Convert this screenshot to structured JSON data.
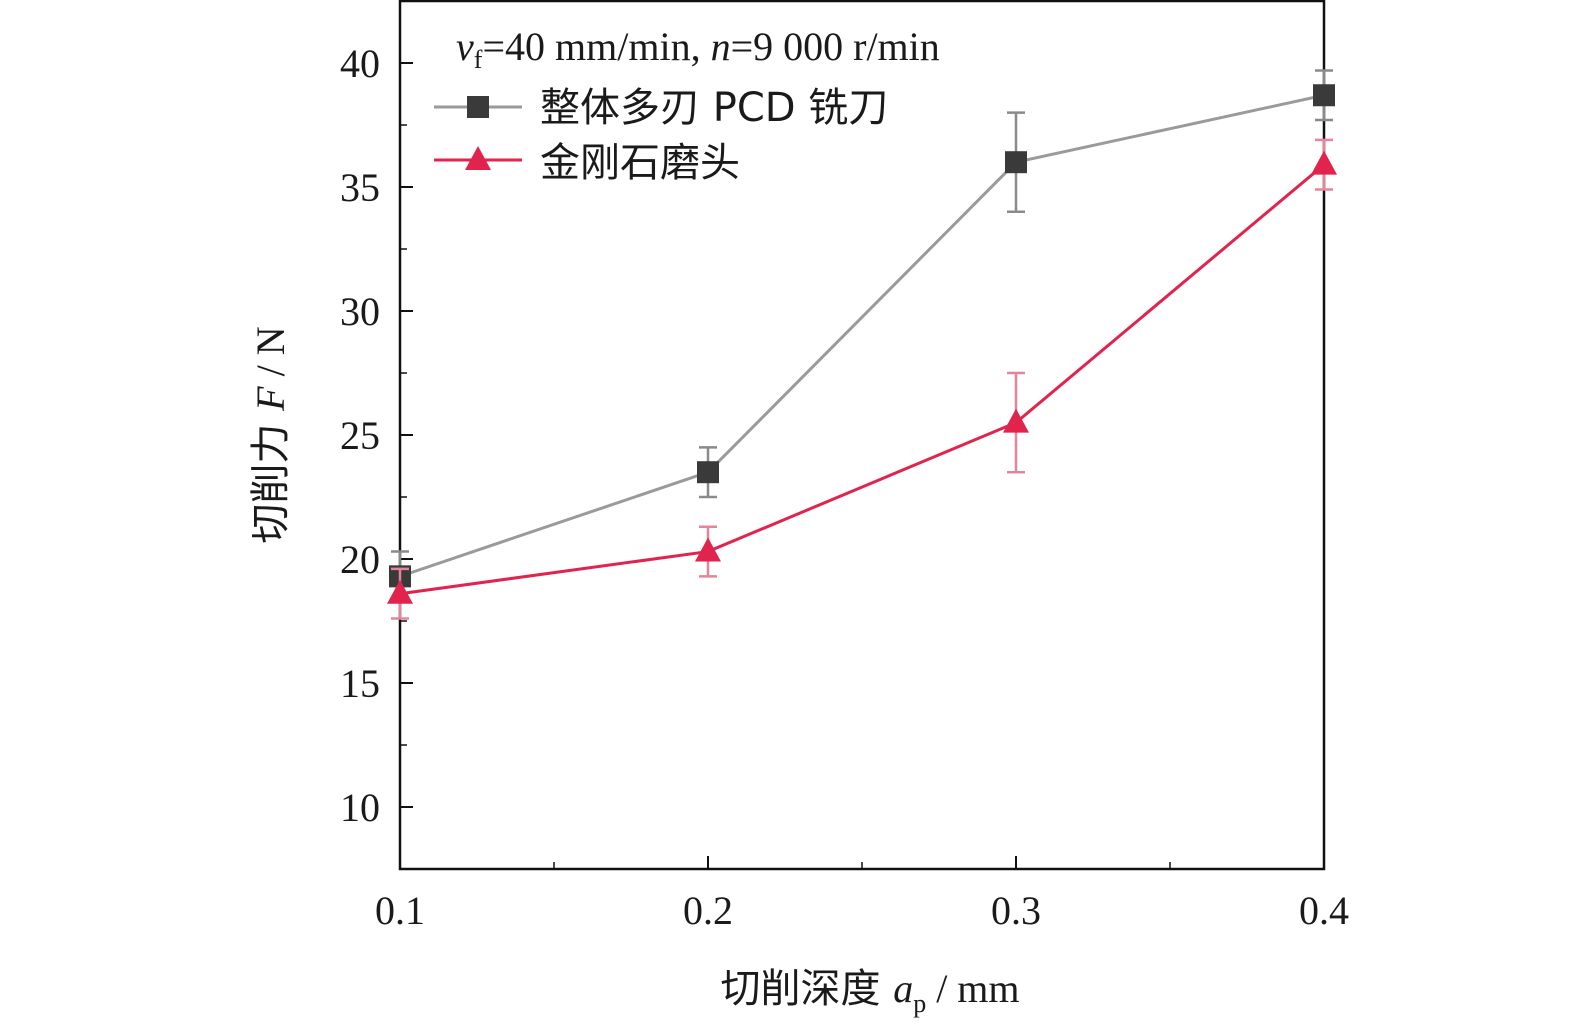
{
  "chart_data": {
    "type": "line",
    "xlabel": {
      "main": "切削深度 ",
      "var": "a",
      "sub": "p",
      "unit": " / mm"
    },
    "ylabel": {
      "main": "切削力 ",
      "var": "F",
      "unit": " / N"
    },
    "annotation": {
      "v": "v",
      "v_sub": "f",
      "part1": "=40 mm/min, ",
      "n": "n",
      "part2": "=9 000 r/min"
    },
    "x": [
      0.1,
      0.2,
      0.3,
      0.4
    ],
    "x_ticks": [
      "0.1",
      "0.2",
      "0.3",
      "0.4"
    ],
    "y_ticks": [
      "10",
      "15",
      "20",
      "25",
      "30",
      "35",
      "40"
    ],
    "xlim": [
      0.1,
      0.4
    ],
    "ylim": [
      7.5,
      42.5
    ],
    "legend_position": "top-left",
    "grid": false,
    "series": [
      {
        "name": "整体多刃 PCD 铣刀",
        "marker": "square",
        "color": "#3a3a3a",
        "line_color": "#9a9a9a",
        "values": [
          19.3,
          23.5,
          36.0,
          38.7
        ],
        "errors": [
          1.0,
          1.0,
          2.0,
          1.0
        ]
      },
      {
        "name": "金刚石磨头",
        "marker": "triangle",
        "color": "#e0244d",
        "line_color": "#e0244d",
        "values": [
          18.6,
          20.3,
          25.5,
          35.9
        ],
        "errors": [
          1.0,
          1.0,
          2.0,
          1.0
        ]
      }
    ]
  }
}
